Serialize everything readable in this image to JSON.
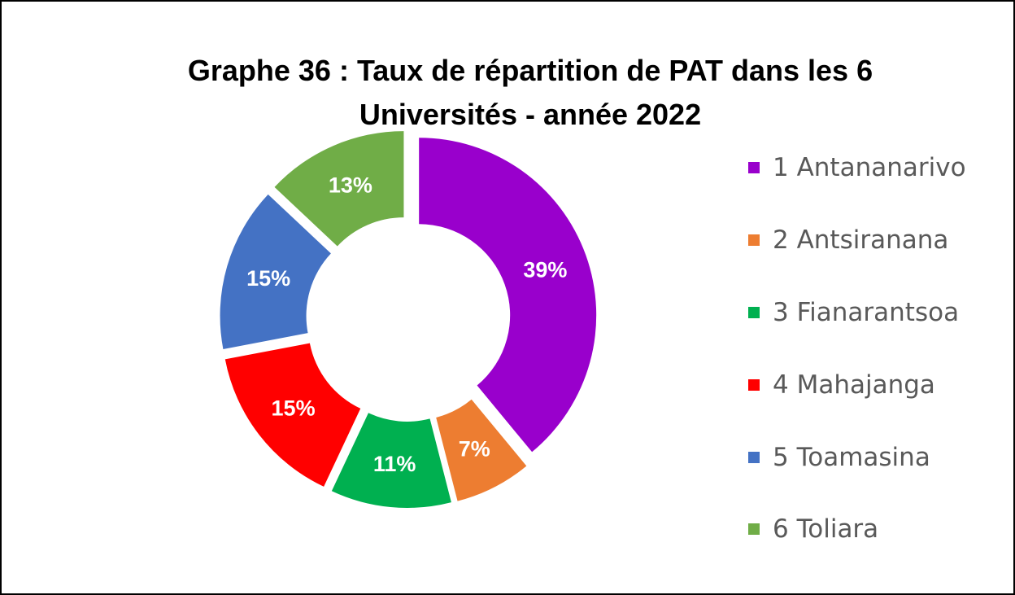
{
  "chart_data": {
    "type": "pie",
    "title_lines": [
      "Graphe 36 : Taux de répartition de PAT dans les 6",
      "Universités - année 2022"
    ],
    "categories": [
      "1 Antananarivo",
      "2 Antsiranana",
      "3 Fianarantsoa",
      "4 Mahajanga",
      "5 Toamasina",
      "6 Toliara"
    ],
    "values": [
      39,
      7,
      11,
      15,
      15,
      13
    ],
    "data_labels": [
      "39%",
      "7%",
      "11%",
      "15%",
      "15%",
      "13%"
    ],
    "colors": [
      "#9900CC",
      "#ED7D31",
      "#00B050",
      "#FF0000",
      "#4472C4",
      "#70AD47"
    ],
    "label_color": "#FFFFFF",
    "donut": true,
    "exploded": true,
    "legend_position": "right"
  }
}
